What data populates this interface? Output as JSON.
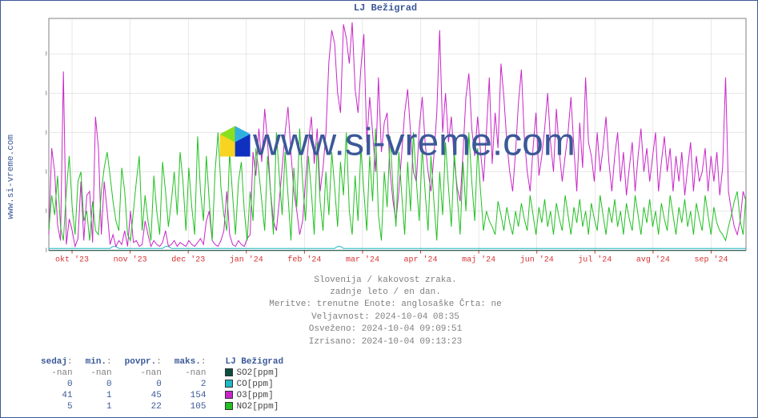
{
  "title": "LJ Bežigrad",
  "source_url": "www.si-vreme.com",
  "watermark": "www.si-vreme.com",
  "watermark_color": "#3b5998",
  "watermark_fontsize": 48,
  "chart": {
    "type": "line",
    "background_color": "#ffffff",
    "grid_color": "#d0d0d0",
    "border_color": "#808080",
    "frame_color": "#3b5998",
    "ylim": [
      0,
      118
    ],
    "yticks": [
      0,
      20,
      40,
      60,
      80,
      100
    ],
    "ytick_color": "#808080",
    "xticks": [
      "okt '23",
      "nov '23",
      "dec '23",
      "jan '24",
      "feb '24",
      "mar '24",
      "apr '24",
      "maj '24",
      "jun '24",
      "jul '24",
      "avg '24",
      "sep '24"
    ],
    "xtick_color": "#d63333",
    "series": [
      {
        "name": "SO2[ppm]",
        "color": "#0a4f3f",
        "values": [
          0,
          0,
          0,
          0,
          0,
          0,
          0,
          0,
          0,
          0,
          0,
          0,
          0,
          0,
          0,
          0,
          0,
          0,
          0,
          0,
          0,
          0,
          0,
          0,
          0,
          0,
          0,
          0,
          0,
          0,
          0,
          0,
          0,
          0,
          0,
          0,
          0,
          0,
          0,
          0,
          0,
          0,
          0,
          0,
          0,
          0,
          0,
          0,
          0,
          0,
          0,
          0,
          0,
          0,
          0,
          0,
          0,
          0,
          0,
          0,
          0,
          0,
          0,
          0,
          0,
          0,
          0,
          0,
          0,
          0,
          0,
          0,
          0,
          0,
          0,
          0,
          0,
          0,
          0,
          0,
          0,
          0,
          0,
          0,
          0,
          0,
          0,
          0,
          0,
          0,
          0,
          0,
          0,
          0,
          0,
          0,
          0,
          0,
          0,
          0,
          0,
          0,
          0,
          0,
          0,
          0,
          0,
          0,
          0,
          0,
          0,
          0,
          0,
          0,
          0,
          0,
          0,
          0,
          0,
          0,
          0,
          0,
          0,
          0,
          0,
          0,
          0,
          0,
          0,
          0,
          0,
          0,
          0,
          0,
          0,
          0,
          0,
          0,
          0,
          0,
          0,
          0,
          0,
          0,
          0,
          0,
          0,
          0,
          0,
          0,
          0,
          0,
          0,
          0,
          0,
          0,
          0,
          0,
          0,
          0,
          0,
          0,
          0,
          0,
          0,
          0,
          0,
          0,
          0,
          0,
          0,
          0,
          0,
          0,
          0,
          0,
          0,
          0,
          0,
          0,
          0,
          0,
          0,
          0,
          0,
          0,
          0,
          0,
          0,
          0,
          0,
          0,
          0,
          0,
          0,
          0,
          0,
          0,
          0,
          0,
          0,
          0,
          0,
          0,
          0,
          0,
          0,
          0,
          0,
          0,
          0,
          0,
          0,
          0,
          0,
          0,
          0,
          0,
          0,
          0,
          0,
          0,
          0,
          0,
          0,
          0,
          0,
          0,
          0,
          0,
          0,
          0,
          0,
          0,
          0,
          0,
          0,
          0,
          0,
          0
        ]
      },
      {
        "name": "CO[ppm]",
        "color": "#1fb8c4",
        "values": [
          1,
          1,
          1,
          1,
          1,
          1,
          1,
          1,
          1,
          1,
          1,
          1,
          1,
          1,
          1,
          1,
          1,
          1,
          1,
          1,
          1,
          1,
          2,
          2,
          1,
          1,
          1,
          1,
          1,
          1,
          1,
          1,
          1,
          1,
          1,
          1,
          1,
          1,
          1,
          1,
          2,
          2,
          1,
          1,
          1,
          1,
          1,
          1,
          1,
          1,
          1,
          1,
          1,
          1,
          1,
          1,
          1,
          1,
          1,
          1,
          1,
          1,
          1,
          1,
          1,
          1,
          1,
          1,
          1,
          1,
          1,
          1,
          1,
          1,
          1,
          1,
          1,
          1,
          1,
          1,
          1,
          1,
          1,
          1,
          1,
          1,
          1,
          1,
          1,
          1,
          1,
          1,
          1,
          1,
          1,
          1,
          1,
          1,
          1,
          2,
          2,
          1,
          1,
          1,
          1,
          1,
          1,
          1,
          1,
          1,
          1,
          1,
          1,
          1,
          1,
          1,
          1,
          1,
          1,
          1,
          1,
          1,
          1,
          1,
          1,
          1,
          1,
          1,
          1,
          1,
          1,
          1,
          1,
          1,
          1,
          1,
          1,
          1,
          1,
          1,
          1,
          1,
          1,
          1,
          1,
          1,
          1,
          1,
          1,
          1,
          1,
          1,
          1,
          1,
          1,
          1,
          1,
          1,
          1,
          1,
          1,
          1,
          1,
          1,
          1,
          1,
          1,
          1,
          1,
          1,
          1,
          1,
          1,
          1,
          1,
          1,
          1,
          1,
          1,
          1,
          1,
          1,
          1,
          1,
          1,
          1,
          1,
          1,
          1,
          1,
          1,
          1,
          1,
          1,
          1,
          1,
          1,
          1,
          1,
          1,
          1,
          1,
          1,
          1,
          1,
          1,
          1,
          1,
          1,
          1,
          1,
          1,
          1,
          1,
          1,
          1,
          1,
          1,
          1,
          1,
          1,
          1,
          1,
          1,
          1,
          1,
          1,
          1,
          1,
          1,
          1,
          1,
          1,
          1,
          1,
          1,
          1,
          1,
          1,
          1
        ]
      },
      {
        "name": "O3[ppm]",
        "color": "#c926c9",
        "values": [
          8,
          52,
          40,
          13,
          5,
          91,
          3,
          16,
          10,
          2,
          6,
          35,
          5,
          28,
          30,
          4,
          68,
          52,
          8,
          35,
          20,
          3,
          8,
          2,
          5,
          3,
          10,
          2,
          20,
          4,
          5,
          2,
          3,
          15,
          8,
          2,
          5,
          3,
          2,
          4,
          10,
          2,
          3,
          5,
          2,
          4,
          3,
          2,
          5,
          3,
          2,
          4,
          6,
          3,
          15,
          20,
          5,
          3,
          2,
          5,
          10,
          30,
          8,
          3,
          2,
          5,
          3,
          2,
          6,
          8,
          50,
          38,
          62,
          45,
          72,
          55,
          30,
          15,
          10,
          25,
          42,
          60,
          73,
          50,
          30,
          20,
          8,
          15,
          35,
          55,
          68,
          44,
          62,
          30,
          42,
          60,
          96,
          112,
          105,
          80,
          70,
          115,
          108,
          95,
          116,
          82,
          70,
          93,
          110,
          55,
          78,
          60,
          40,
          88,
          50,
          65,
          70,
          40,
          25,
          15,
          30,
          50,
          70,
          82,
          60,
          40,
          35,
          62,
          78,
          55,
          40,
          30,
          48,
          70,
          112,
          60,
          80,
          55,
          68,
          45,
          32,
          25,
          50,
          78,
          90,
          62,
          48,
          68,
          50,
          35,
          60,
          88,
          44,
          70,
          52,
          95,
          78,
          55,
          40,
          30,
          50,
          75,
          92,
          58,
          40,
          30,
          52,
          70,
          38,
          48,
          62,
          80,
          55,
          40,
          72,
          50,
          35,
          48,
          60,
          78,
          52,
          30,
          65,
          42,
          88,
          55,
          48,
          35,
          60,
          40,
          52,
          68,
          45,
          30,
          48,
          60,
          35,
          50,
          28,
          42,
          55,
          30,
          48,
          62,
          40,
          52,
          35,
          48,
          60,
          30,
          45,
          58,
          40,
          52,
          30,
          48,
          35,
          50,
          28,
          42,
          55,
          30,
          48,
          35,
          40,
          52,
          30,
          48,
          35,
          50,
          28,
          42,
          88,
          30,
          20,
          12,
          8,
          15,
          30,
          25
        ]
      },
      {
        "name": "NO2[ppm]",
        "color": "#22c022",
        "values": [
          10,
          28,
          18,
          38,
          12,
          5,
          30,
          48,
          22,
          8,
          35,
          40,
          15,
          20,
          5,
          25,
          10,
          8,
          30,
          42,
          50,
          38,
          25,
          15,
          10,
          42,
          30,
          8,
          5,
          20,
          35,
          48,
          10,
          28,
          15,
          5,
          38,
          20,
          8,
          45,
          30,
          12,
          25,
          40,
          18,
          50,
          35,
          10,
          42,
          22,
          8,
          58,
          30,
          15,
          48,
          25,
          5,
          40,
          60,
          32,
          18,
          10,
          50,
          28,
          8,
          35,
          45,
          20,
          5,
          30,
          15,
          52,
          40,
          25,
          10,
          48,
          30,
          8,
          60,
          38,
          18,
          50,
          28,
          5,
          42,
          22,
          62,
          35,
          15,
          48,
          30,
          8,
          55,
          25,
          10,
          40,
          18,
          50,
          32,
          12,
          45,
          28,
          60,
          20,
          8,
          38,
          15,
          52,
          30,
          10,
          48,
          25,
          62,
          18,
          5,
          40,
          22,
          58,
          32,
          12,
          50,
          28,
          8,
          45,
          20,
          60,
          35,
          15,
          52,
          30,
          10,
          48,
          25,
          5,
          40,
          18,
          55,
          32,
          12,
          50,
          28,
          8,
          45,
          20,
          60,
          35,
          15,
          52,
          30,
          10,
          20,
          15,
          12,
          8,
          25,
          18,
          10,
          22,
          14,
          8,
          20,
          12,
          24,
          16,
          10,
          28,
          18,
          8,
          22,
          14,
          26,
          12,
          20,
          8,
          24,
          16,
          10,
          28,
          18,
          8,
          22,
          14,
          26,
          12,
          20,
          8,
          24,
          16,
          10,
          28,
          18,
          8,
          22,
          14,
          26,
          12,
          20,
          8,
          24,
          16,
          10,
          28,
          18,
          8,
          22,
          14,
          26,
          12,
          20,
          8,
          24,
          16,
          10,
          28,
          18,
          8,
          22,
          14,
          26,
          12,
          20,
          8,
          24,
          16,
          10,
          28,
          18,
          8,
          22,
          14,
          10,
          8,
          5,
          12,
          18,
          25,
          30,
          15,
          8,
          28
        ]
      }
    ]
  },
  "meta": {
    "line1": "Slovenija / kakovost zraka.",
    "line2": "zadnje leto / en dan.",
    "line3": "Meritve: trenutne  Enote: anglosaške  Črta: ne",
    "line4": "Veljavnost: 2024-10-04 08:35",
    "line5": "Osveženo: 2024-10-04 09:09:51",
    "line6": "Izrisano: 2024-10-04 09:13:23"
  },
  "stats": {
    "headers": {
      "now": "sedaj",
      "min": "min.",
      "avg": "povpr.",
      "max": "maks.",
      "series": "LJ Bežigrad"
    },
    "rows": [
      {
        "now": "-nan",
        "min": "-nan",
        "avg": "-nan",
        "max": "-nan",
        "label": "SO2[ppm]",
        "color": "#0a4f3f",
        "text_color": "#808080"
      },
      {
        "now": "0",
        "min": "0",
        "avg": "0",
        "max": "2",
        "label": "CO[ppm]",
        "color": "#1fb8c4",
        "text_color": "#3b5998"
      },
      {
        "now": "41",
        "min": "1",
        "avg": "45",
        "max": "154",
        "label": "O3[ppm]",
        "color": "#c926c9",
        "text_color": "#3b5998"
      },
      {
        "now": "5",
        "min": "1",
        "avg": "22",
        "max": "105",
        "label": "NO2[ppm]",
        "color": "#22c022",
        "text_color": "#3b5998"
      }
    ]
  }
}
